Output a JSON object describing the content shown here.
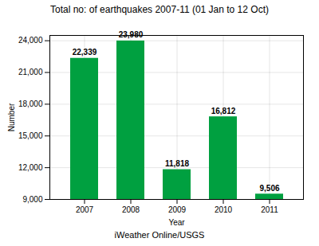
{
  "chart_data": {
    "type": "bar",
    "title": "Total no: of earthquakes 2007-11 (01 Jan to 12 Oct)",
    "xlabel": "Year",
    "ylabel": "Number",
    "annotations": [
      "iWeather Online/USGS"
    ],
    "categories": [
      "2007",
      "2008",
      "2009",
      "2010",
      "2011"
    ],
    "values": [
      22339,
      23980,
      11818,
      16812,
      9506
    ],
    "value_labels": [
      "22,339",
      "23,980",
      "11,818",
      "16,812",
      "9,506"
    ],
    "data_labels": true,
    "color": "#00A040",
    "ylim": [
      9000,
      24500
    ],
    "yticks": [
      {
        "value": 9000,
        "label": "9,000"
      },
      {
        "value": 12000,
        "label": "12,000"
      },
      {
        "value": 15000,
        "label": "15,000"
      },
      {
        "value": 18000,
        "label": "18,000"
      },
      {
        "value": 21000,
        "label": "21,000"
      },
      {
        "value": 24000,
        "label": "24,000"
      }
    ],
    "grid": true
  }
}
